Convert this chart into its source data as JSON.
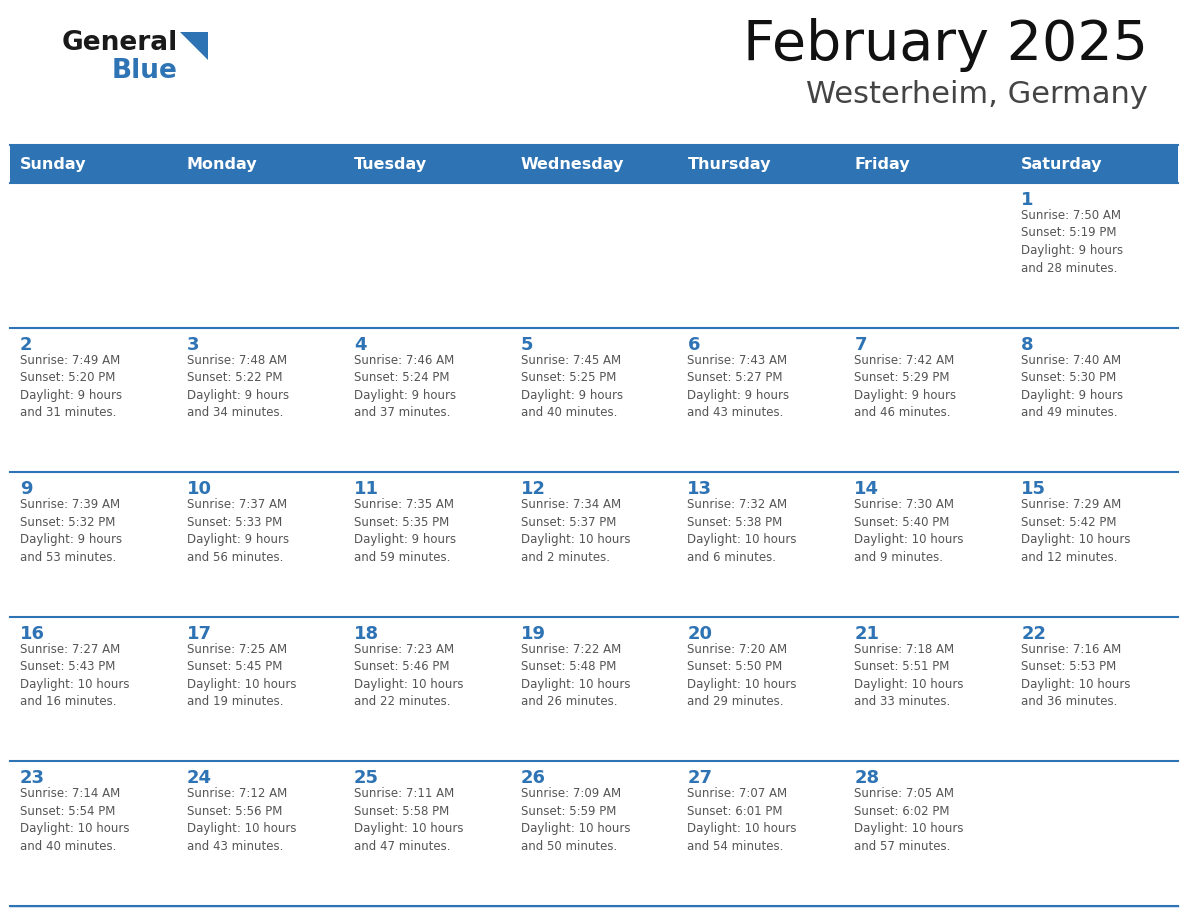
{
  "title": "February 2025",
  "subtitle": "Westerheim, Germany",
  "header_bg": "#2E74B5",
  "header_text_color": "#FFFFFF",
  "border_color": "#2E74B5",
  "day_number_color": "#2E74B5",
  "text_color": "#555555",
  "days_of_week": [
    "Sunday",
    "Monday",
    "Tuesday",
    "Wednesday",
    "Thursday",
    "Friday",
    "Saturday"
  ],
  "logo_general_color": "#1a1a1a",
  "logo_blue_color": "#2E74B5",
  "calendar_data": [
    [
      {
        "day": null,
        "info": null
      },
      {
        "day": null,
        "info": null
      },
      {
        "day": null,
        "info": null
      },
      {
        "day": null,
        "info": null
      },
      {
        "day": null,
        "info": null
      },
      {
        "day": null,
        "info": null
      },
      {
        "day": 1,
        "info": "Sunrise: 7:50 AM\nSunset: 5:19 PM\nDaylight: 9 hours\nand 28 minutes."
      }
    ],
    [
      {
        "day": 2,
        "info": "Sunrise: 7:49 AM\nSunset: 5:20 PM\nDaylight: 9 hours\nand 31 minutes."
      },
      {
        "day": 3,
        "info": "Sunrise: 7:48 AM\nSunset: 5:22 PM\nDaylight: 9 hours\nand 34 minutes."
      },
      {
        "day": 4,
        "info": "Sunrise: 7:46 AM\nSunset: 5:24 PM\nDaylight: 9 hours\nand 37 minutes."
      },
      {
        "day": 5,
        "info": "Sunrise: 7:45 AM\nSunset: 5:25 PM\nDaylight: 9 hours\nand 40 minutes."
      },
      {
        "day": 6,
        "info": "Sunrise: 7:43 AM\nSunset: 5:27 PM\nDaylight: 9 hours\nand 43 minutes."
      },
      {
        "day": 7,
        "info": "Sunrise: 7:42 AM\nSunset: 5:29 PM\nDaylight: 9 hours\nand 46 minutes."
      },
      {
        "day": 8,
        "info": "Sunrise: 7:40 AM\nSunset: 5:30 PM\nDaylight: 9 hours\nand 49 minutes."
      }
    ],
    [
      {
        "day": 9,
        "info": "Sunrise: 7:39 AM\nSunset: 5:32 PM\nDaylight: 9 hours\nand 53 minutes."
      },
      {
        "day": 10,
        "info": "Sunrise: 7:37 AM\nSunset: 5:33 PM\nDaylight: 9 hours\nand 56 minutes."
      },
      {
        "day": 11,
        "info": "Sunrise: 7:35 AM\nSunset: 5:35 PM\nDaylight: 9 hours\nand 59 minutes."
      },
      {
        "day": 12,
        "info": "Sunrise: 7:34 AM\nSunset: 5:37 PM\nDaylight: 10 hours\nand 2 minutes."
      },
      {
        "day": 13,
        "info": "Sunrise: 7:32 AM\nSunset: 5:38 PM\nDaylight: 10 hours\nand 6 minutes."
      },
      {
        "day": 14,
        "info": "Sunrise: 7:30 AM\nSunset: 5:40 PM\nDaylight: 10 hours\nand 9 minutes."
      },
      {
        "day": 15,
        "info": "Sunrise: 7:29 AM\nSunset: 5:42 PM\nDaylight: 10 hours\nand 12 minutes."
      }
    ],
    [
      {
        "day": 16,
        "info": "Sunrise: 7:27 AM\nSunset: 5:43 PM\nDaylight: 10 hours\nand 16 minutes."
      },
      {
        "day": 17,
        "info": "Sunrise: 7:25 AM\nSunset: 5:45 PM\nDaylight: 10 hours\nand 19 minutes."
      },
      {
        "day": 18,
        "info": "Sunrise: 7:23 AM\nSunset: 5:46 PM\nDaylight: 10 hours\nand 22 minutes."
      },
      {
        "day": 19,
        "info": "Sunrise: 7:22 AM\nSunset: 5:48 PM\nDaylight: 10 hours\nand 26 minutes."
      },
      {
        "day": 20,
        "info": "Sunrise: 7:20 AM\nSunset: 5:50 PM\nDaylight: 10 hours\nand 29 minutes."
      },
      {
        "day": 21,
        "info": "Sunrise: 7:18 AM\nSunset: 5:51 PM\nDaylight: 10 hours\nand 33 minutes."
      },
      {
        "day": 22,
        "info": "Sunrise: 7:16 AM\nSunset: 5:53 PM\nDaylight: 10 hours\nand 36 minutes."
      }
    ],
    [
      {
        "day": 23,
        "info": "Sunrise: 7:14 AM\nSunset: 5:54 PM\nDaylight: 10 hours\nand 40 minutes."
      },
      {
        "day": 24,
        "info": "Sunrise: 7:12 AM\nSunset: 5:56 PM\nDaylight: 10 hours\nand 43 minutes."
      },
      {
        "day": 25,
        "info": "Sunrise: 7:11 AM\nSunset: 5:58 PM\nDaylight: 10 hours\nand 47 minutes."
      },
      {
        "day": 26,
        "info": "Sunrise: 7:09 AM\nSunset: 5:59 PM\nDaylight: 10 hours\nand 50 minutes."
      },
      {
        "day": 27,
        "info": "Sunrise: 7:07 AM\nSunset: 6:01 PM\nDaylight: 10 hours\nand 54 minutes."
      },
      {
        "day": 28,
        "info": "Sunrise: 7:05 AM\nSunset: 6:02 PM\nDaylight: 10 hours\nand 57 minutes."
      },
      {
        "day": null,
        "info": null
      }
    ]
  ]
}
